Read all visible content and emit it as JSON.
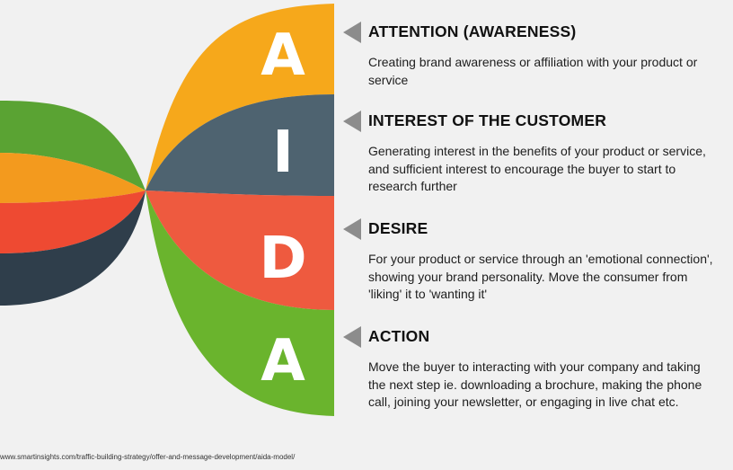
{
  "stages": [
    {
      "letter": "A",
      "title": "ATTENTION (AWARENESS)",
      "description": "Creating brand awareness or affiliation with your product or service",
      "color": "#f6a81b"
    },
    {
      "letter": "I",
      "title": "INTEREST OF THE CUSTOMER",
      "description": "Generating interest in the benefits of your product or service, and sufficient interest to encourage the buyer to start to research further",
      "color": "#4e6370"
    },
    {
      "letter": "D",
      "title": "DESIRE",
      "description": "For your product or service through an 'emotional connection', showing your brand personality. Move the consumer from 'liking' it to 'wanting it'",
      "color": "#ee5a3f"
    },
    {
      "letter": "A",
      "title": "ACTION",
      "description": "Move the buyer to interacting with your company and taking the next step ie. downloading a brochure, making the phone call, joining your newsletter, or engaging in live chat etc.",
      "color": "#6ab42d"
    }
  ],
  "left_band_colors": [
    "#5aa333",
    "#f39a1e",
    "#ee4a32",
    "#2f3e4b"
  ],
  "arrow_color": "#8c8c8c",
  "source": "www.smartinsights.com/traffic-building-strategy/offer-and-message-development/aida-model/"
}
